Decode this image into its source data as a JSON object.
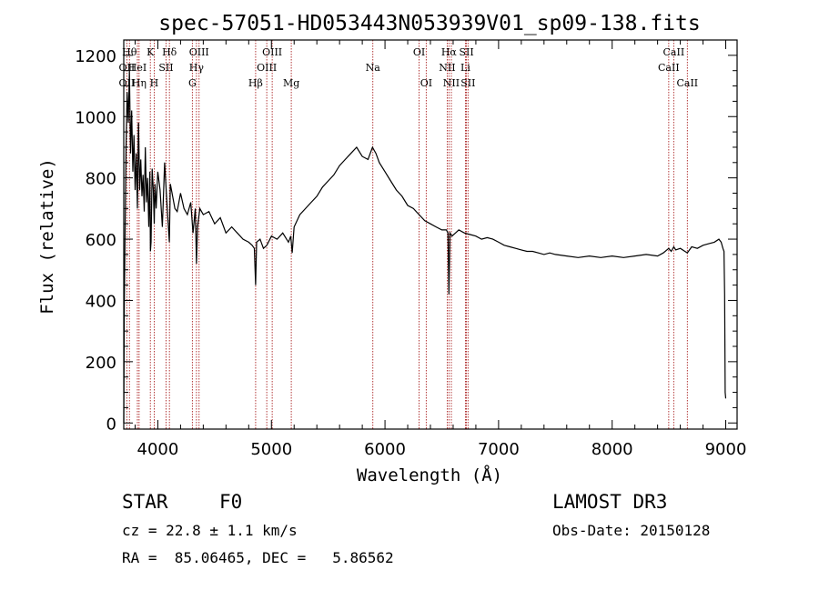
{
  "chart_data": {
    "type": "line",
    "title": "spec-57051-HD053443N053939V01_sp09-138.fits",
    "xlabel": "Wavelength (Å)",
    "ylabel": "Flux (relative)",
    "xlim": [
      3700,
      9100
    ],
    "ylim": [
      -20,
      1250
    ],
    "x_ticks": [
      4000,
      5000,
      6000,
      7000,
      8000,
      9000
    ],
    "y_ticks": [
      0,
      200,
      400,
      600,
      800,
      1000,
      1200
    ],
    "grid": false,
    "series": [
      {
        "x": [
          3700,
          3705,
          3712,
          3720,
          3730,
          3740,
          3750,
          3760,
          3770,
          3780,
          3790,
          3800,
          3810,
          3820,
          3830,
          3840,
          3850,
          3860,
          3870,
          3880,
          3890,
          3900,
          3910,
          3920,
          3930,
          3935,
          3940,
          3950,
          3960,
          3968,
          3975,
          3985,
          4000,
          4020,
          4040,
          4060,
          4080,
          4101,
          4110,
          4130,
          4150,
          4170,
          4200,
          4230,
          4260,
          4290,
          4310,
          4330,
          4340,
          4350,
          4370,
          4400,
          4450,
          4500,
          4550,
          4600,
          4650,
          4700,
          4750,
          4800,
          4830,
          4850,
          4861,
          4870,
          4900,
          4930,
          4960,
          5000,
          5050,
          5100,
          5150,
          5170,
          5183,
          5200,
          5250,
          5300,
          5350,
          5400,
          5450,
          5500,
          5550,
          5600,
          5650,
          5700,
          5750,
          5800,
          5850,
          5890,
          5920,
          5950,
          6000,
          6050,
          6100,
          6150,
          6200,
          6250,
          6300,
          6350,
          6400,
          6450,
          6500,
          6540,
          6555,
          6563,
          6572,
          6590,
          6620,
          6650,
          6700,
          6750,
          6800,
          6850,
          6900,
          6950,
          7000,
          7050,
          7100,
          7150,
          7200,
          7250,
          7300,
          7350,
          7400,
          7450,
          7500,
          7600,
          7700,
          7800,
          7900,
          8000,
          8100,
          8200,
          8300,
          8400,
          8450,
          8498,
          8520,
          8542,
          8560,
          8600,
          8662,
          8700,
          8750,
          8800,
          8850,
          8900,
          8940,
          8960,
          8975,
          8985,
          8990,
          8995,
          9000
        ],
        "values": [
          0,
          380,
          640,
          900,
          1080,
          980,
          1150,
          880,
          1020,
          820,
          940,
          760,
          880,
          700,
          980,
          760,
          860,
          740,
          810,
          690,
          900,
          720,
          800,
          640,
          820,
          560,
          590,
          830,
          760,
          650,
          780,
          700,
          820,
          760,
          640,
          850,
          720,
          590,
          780,
          740,
          700,
          690,
          750,
          700,
          680,
          720,
          620,
          700,
          520,
          640,
          700,
          680,
          690,
          650,
          670,
          620,
          640,
          620,
          600,
          590,
          580,
          570,
          450,
          590,
          600,
          570,
          580,
          610,
          600,
          620,
          590,
          610,
          555,
          640,
          680,
          700,
          720,
          740,
          770,
          790,
          810,
          840,
          860,
          880,
          900,
          870,
          860,
          900,
          880,
          850,
          820,
          790,
          760,
          740,
          710,
          700,
          680,
          660,
          650,
          640,
          630,
          630,
          620,
          420,
          620,
          610,
          620,
          630,
          620,
          615,
          610,
          600,
          605,
          600,
          590,
          580,
          575,
          570,
          565,
          560,
          560,
          555,
          550,
          555,
          550,
          545,
          540,
          545,
          540,
          545,
          540,
          545,
          550,
          545,
          555,
          570,
          560,
          575,
          565,
          570,
          555,
          575,
          570,
          580,
          585,
          590,
          600,
          590,
          570,
          560,
          420,
          100,
          80
        ]
      }
    ],
    "spectral_lines": [
      {
        "label": "OII",
        "wavelength": 3727,
        "row": 2
      },
      {
        "label": "OII",
        "wavelength": 3727,
        "row": 1
      },
      {
        "label": "Hθ",
        "wavelength": 3750,
        "row": 0
      },
      {
        "label": "Hη",
        "wavelength": 3835,
        "row": 2
      },
      {
        "label": "HeI",
        "wavelength": 3820,
        "row": 1
      },
      {
        "label": "K",
        "wavelength": 3934,
        "row": 0
      },
      {
        "label": "H",
        "wavelength": 3968,
        "row": 2
      },
      {
        "label": "SII",
        "wavelength": 4072,
        "row": 1
      },
      {
        "label": "Hδ",
        "wavelength": 4102,
        "row": 0
      },
      {
        "label": "Hγ",
        "wavelength": 4340,
        "row": 1
      },
      {
        "label": "G",
        "wavelength": 4304,
        "row": 2
      },
      {
        "label": "OIII",
        "wavelength": 4363,
        "row": 0
      },
      {
        "label": "Hβ",
        "wavelength": 4861,
        "row": 2
      },
      {
        "label": "OIII",
        "wavelength": 4959,
        "row": 1
      },
      {
        "label": "OIII",
        "wavelength": 5007,
        "row": 0
      },
      {
        "label": "Mg",
        "wavelength": 5175,
        "row": 2
      },
      {
        "label": "Na",
        "wavelength": 5893,
        "row": 1
      },
      {
        "label": "OI",
        "wavelength": 6300,
        "row": 0
      },
      {
        "label": "OI",
        "wavelength": 6363,
        "row": 2
      },
      {
        "label": "NII",
        "wavelength": 6548,
        "row": 1
      },
      {
        "label": "Hα",
        "wavelength": 6563,
        "row": 0
      },
      {
        "label": "NII",
        "wavelength": 6584,
        "row": 2
      },
      {
        "label": "SII",
        "wavelength": 6717,
        "row": 0
      },
      {
        "label": "Li",
        "wavelength": 6708,
        "row": 1
      },
      {
        "label": "SII",
        "wavelength": 6731,
        "row": 2
      },
      {
        "label": "CaII",
        "wavelength": 8498,
        "row": 1
      },
      {
        "label": "CaII",
        "wavelength": 8542,
        "row": 0
      },
      {
        "label": "CaII",
        "wavelength": 8662,
        "row": 2
      }
    ]
  },
  "info": {
    "object_class": "STAR",
    "subclass": "F0",
    "survey": "LAMOST DR3",
    "cz": "cz = 22.8 ± 1.1 km/s",
    "obs_date": "Obs-Date: 20150128",
    "coords": "RA =  85.06465, DEC =   5.86562"
  },
  "colors": {
    "spectrum": "#000000",
    "line_marker": "#aa2222"
  }
}
